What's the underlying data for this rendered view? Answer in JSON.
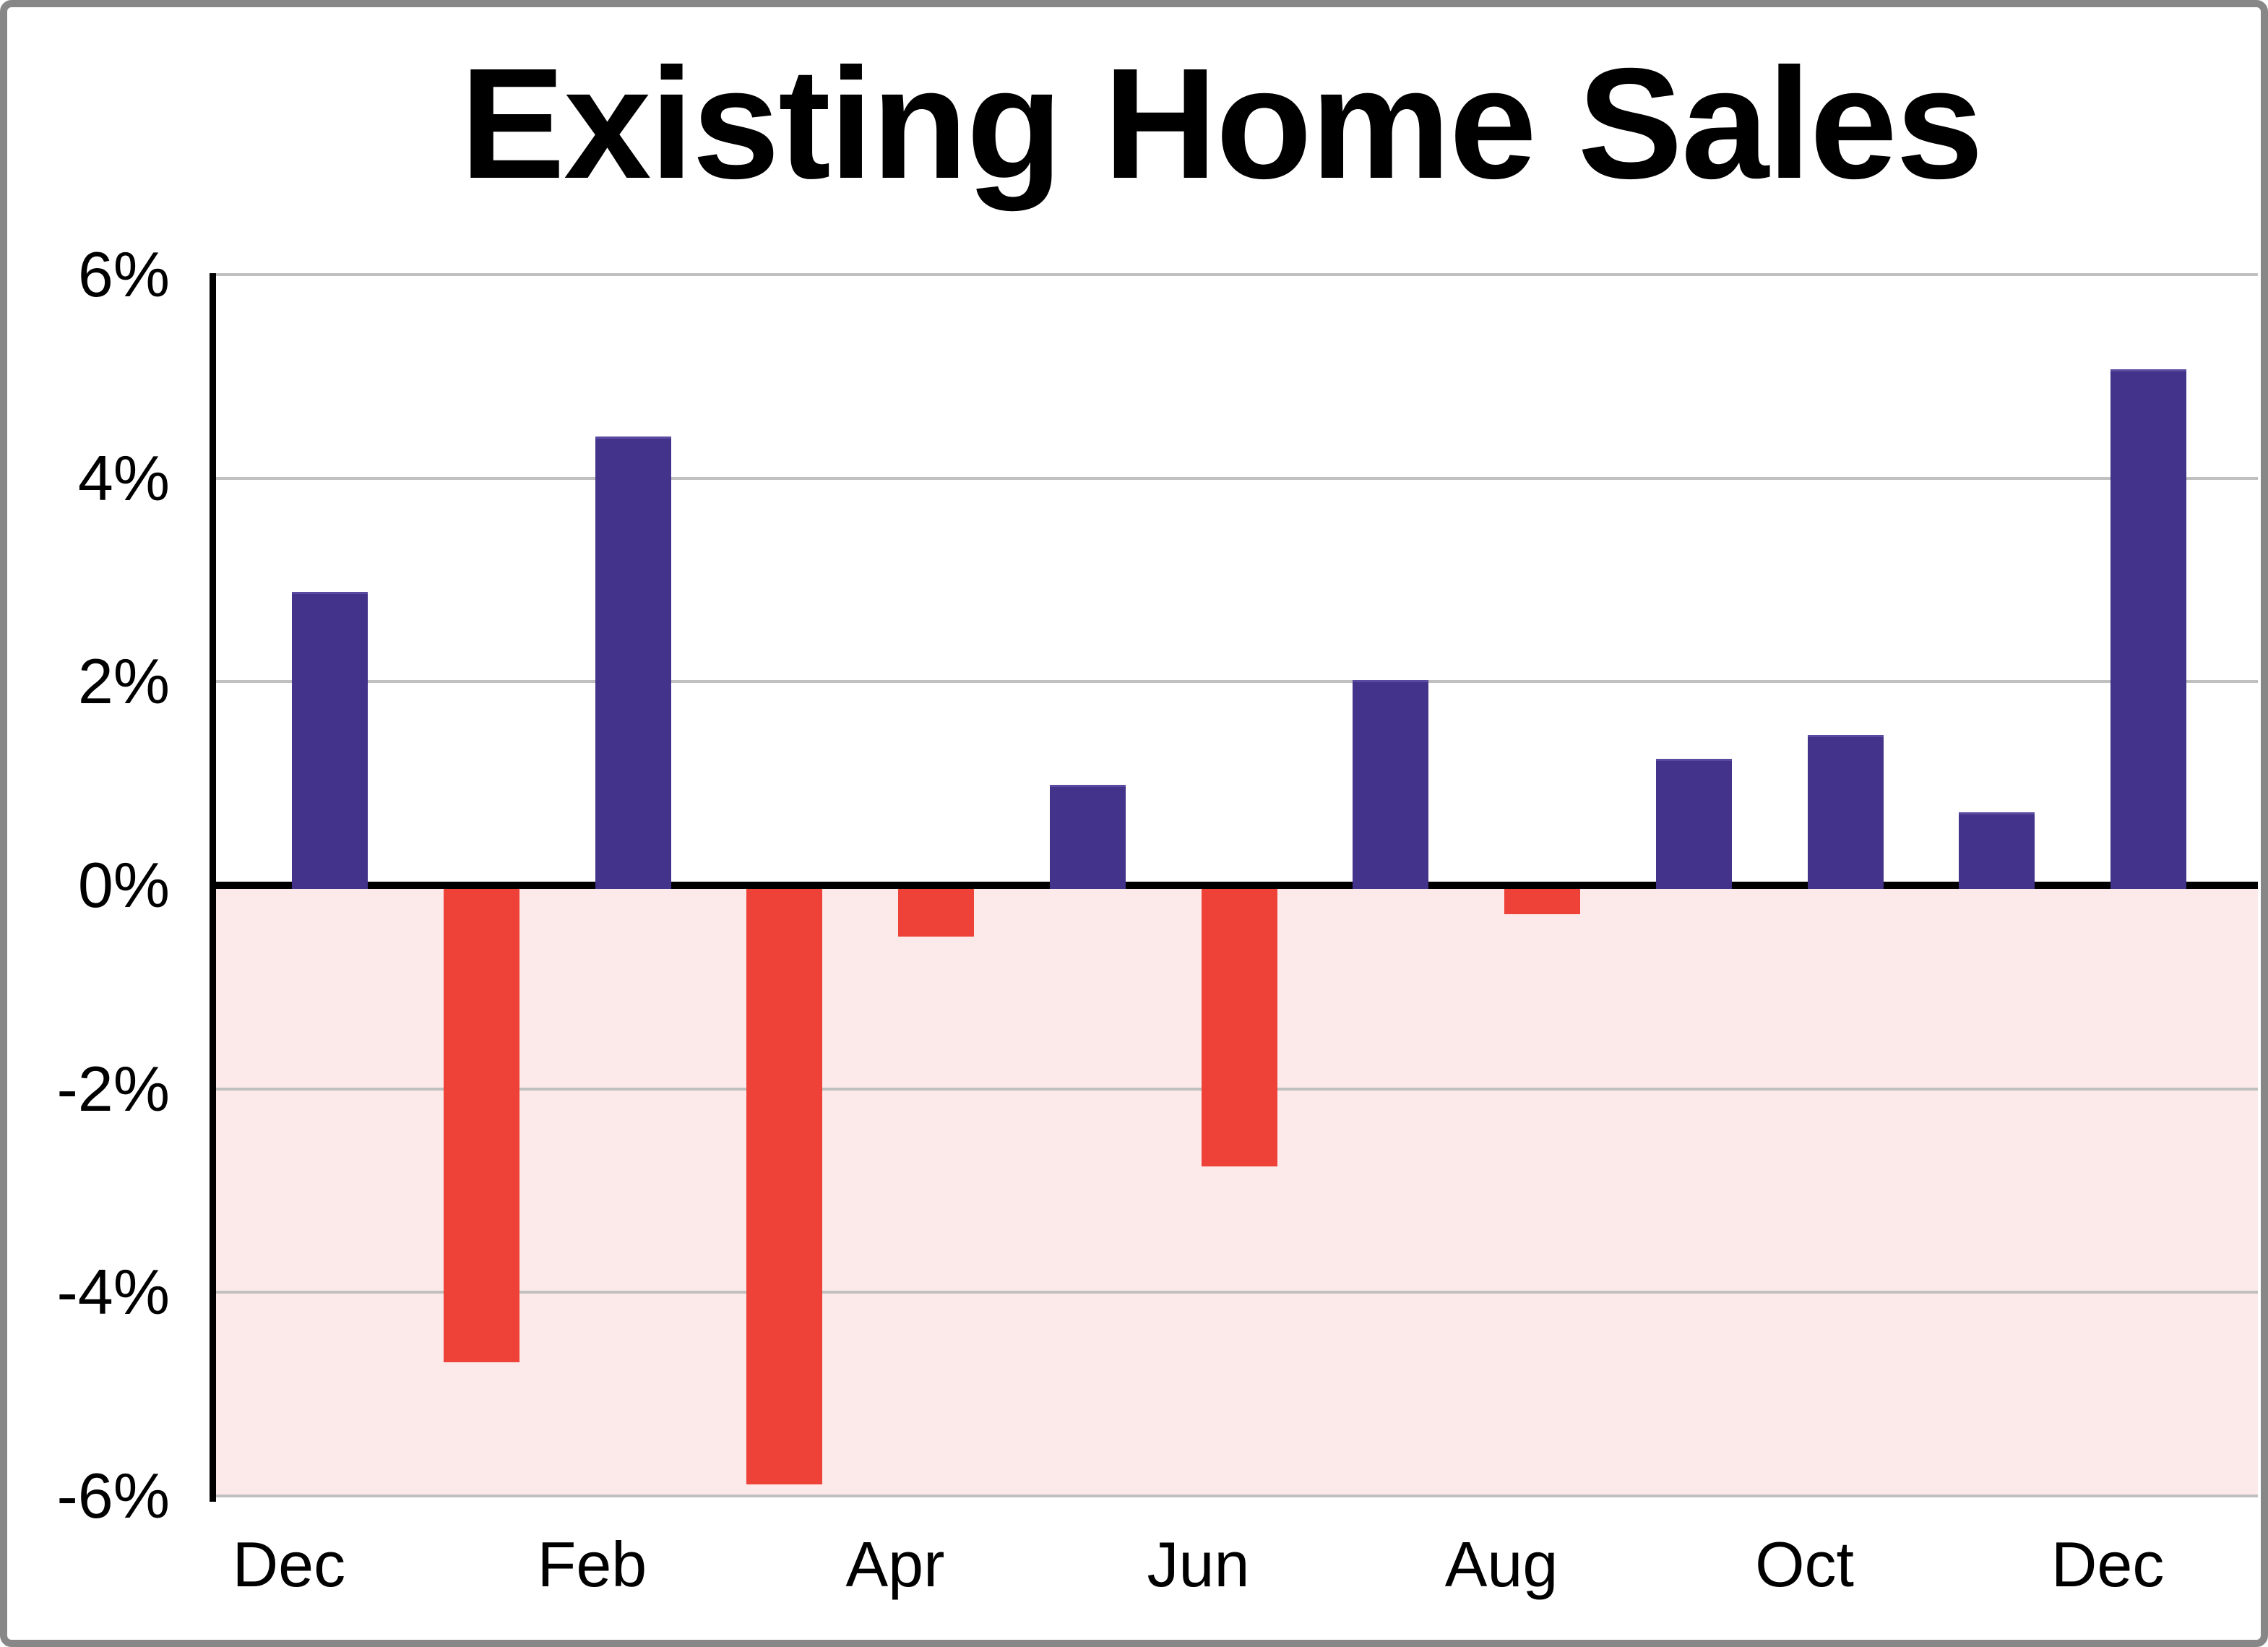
{
  "title": "Existing Home Sales",
  "chart_data": {
    "type": "bar",
    "title": "Existing Home Sales",
    "categories": [
      "Dec",
      "Jan",
      "Feb",
      "Mar",
      "Apr",
      "May",
      "Jun",
      "Jul",
      "Aug",
      "Sep",
      "Oct",
      "Nov",
      "Dec"
    ],
    "values": [
      2.88,
      -4.65,
      4.41,
      -5.85,
      -0.47,
      0.99,
      -2.73,
      2.02,
      -0.25,
      1.24,
      1.48,
      0.72,
      5.07
    ],
    "x_tick_labels": [
      "Dec",
      "Feb",
      "Apr",
      "Jun",
      "Aug",
      "Oct",
      "Dec"
    ],
    "x_tick_every": 2,
    "y_ticks": [
      6,
      4,
      2,
      0,
      -2,
      -4,
      -6
    ],
    "y_tick_labels": [
      "6%",
      "4%",
      "2%",
      "0%",
      "-2%",
      "-4%",
      "-6%"
    ],
    "ylim": [
      -6,
      6
    ],
    "xlabel": "",
    "ylabel": "",
    "grid": true,
    "legend": false,
    "colors": {
      "positive_bar": "#44338A",
      "positive_bar_edge": "#5B4BA0",
      "negative_bar": "#EE4137",
      "negative_region_bg": "#FCE9E9",
      "gridline": "#C0C0C0",
      "zero_line": "#000000",
      "axis_line": "#000000",
      "frame_border": "#878787",
      "background": "#FFFFFF",
      "title_text": "#000000"
    }
  }
}
